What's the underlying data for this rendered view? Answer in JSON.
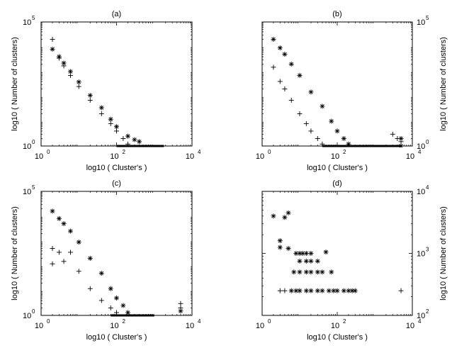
{
  "chart_data": [
    {
      "type": "scatter",
      "title": "(a)",
      "xlabel": "log10 ( Cluster's )",
      "ylabel": "log10 ( Number of clusters)",
      "xscale": "log",
      "yscale": "log",
      "xlim": [
        1,
        10000
      ],
      "ylim": [
        1,
        100000
      ],
      "xticks": [
        {
          "value": 1,
          "label": "10",
          "exp": "0"
        },
        {
          "value": 100,
          "label": "10",
          "exp": "2"
        },
        {
          "value": 10000,
          "label": "10",
          "exp": "4"
        }
      ],
      "yticks": [
        {
          "value": 1,
          "label": "10",
          "exp": "0"
        },
        {
          "value": 100000,
          "label": "10",
          "exp": "5"
        }
      ],
      "y_axis_side": "left",
      "series": [
        {
          "marker": "plus",
          "points": [
            [
              2,
              20000
            ],
            [
              3,
              3500
            ],
            [
              4,
              1700
            ],
            [
              6,
              700
            ],
            [
              10,
              250
            ],
            [
              20,
              70
            ],
            [
              40,
              20
            ],
            [
              70,
              8
            ],
            [
              100,
              4
            ],
            [
              150,
              2
            ],
            [
              200,
              1.2
            ]
          ]
        },
        {
          "marker": "star",
          "points": [
            [
              2,
              8000
            ],
            [
              3,
              4000
            ],
            [
              4,
              2200
            ],
            [
              6,
              1000
            ],
            [
              10,
              380
            ],
            [
              20,
              110
            ],
            [
              40,
              35
            ],
            [
              70,
              12
            ],
            [
              100,
              6
            ],
            [
              200,
              2.5
            ],
            [
              300,
              1.8
            ],
            [
              400,
              1.5
            ]
          ]
        }
      ],
      "baseline": {
        "y": 1,
        "x_from": 100,
        "x_to": 1800
      }
    },
    {
      "type": "scatter",
      "title": "(b)",
      "xlabel": "log10 ( Cluster's )",
      "ylabel": "log10 ( Number of clusters)",
      "xscale": "log",
      "yscale": "log",
      "xlim": [
        1,
        10000
      ],
      "ylim": [
        1,
        100000
      ],
      "xticks": [
        {
          "value": 1,
          "label": "10",
          "exp": "0"
        },
        {
          "value": 100,
          "label": "10",
          "exp": "2"
        },
        {
          "value": 10000,
          "label": "10",
          "exp": "4"
        }
      ],
      "yticks": [
        {
          "value": 1,
          "label": "10",
          "exp": "0"
        },
        {
          "value": 100000,
          "label": "10",
          "exp": "5"
        }
      ],
      "y_axis_side": "right",
      "series": [
        {
          "marker": "plus",
          "points": [
            [
              2,
              1500
            ],
            [
              3,
              400
            ],
            [
              4,
              200
            ],
            [
              6,
              70
            ],
            [
              10,
              20
            ],
            [
              15,
              8
            ],
            [
              20,
              4
            ],
            [
              30,
              2
            ],
            [
              40,
              1.2
            ],
            [
              3000,
              3
            ],
            [
              4000,
              2
            ],
            [
              5000,
              1.5
            ]
          ]
        },
        {
          "marker": "star",
          "points": [
            [
              2,
              20000
            ],
            [
              3,
              9000
            ],
            [
              4,
              5000
            ],
            [
              6,
              2000
            ],
            [
              10,
              700
            ],
            [
              20,
              150
            ],
            [
              40,
              40
            ],
            [
              70,
              10
            ],
            [
              100,
              4
            ],
            [
              150,
              2
            ],
            [
              200,
              1.2
            ],
            [
              5000,
              2
            ],
            [
              5000,
              1
            ]
          ]
        }
      ],
      "baseline": {
        "y": 1,
        "x_from": 40,
        "x_to": 5000
      }
    },
    {
      "type": "scatter",
      "title": "(c)",
      "xlabel": "log10 ( Cluster's )",
      "ylabel": "log10 ( Number of clusters)",
      "xscale": "log",
      "yscale": "log",
      "xlim": [
        1,
        10000
      ],
      "ylim": [
        1,
        100000
      ],
      "xticks": [
        {
          "value": 1,
          "label": "10",
          "exp": "0"
        },
        {
          "value": 100,
          "label": "10",
          "exp": "2"
        },
        {
          "value": 10000,
          "label": "10",
          "exp": "4"
        }
      ],
      "yticks": [
        {
          "value": 1,
          "label": "10",
          "exp": "0"
        },
        {
          "value": 100000,
          "label": "10",
          "exp": "5"
        }
      ],
      "y_axis_side": "left",
      "series": [
        {
          "marker": "plus",
          "points": [
            [
              2,
              500
            ],
            [
              2,
              120
            ],
            [
              3,
              350
            ],
            [
              4,
              150
            ],
            [
              6,
              350
            ],
            [
              10,
              60
            ],
            [
              20,
              12
            ],
            [
              40,
              4
            ],
            [
              70,
              2
            ],
            [
              100,
              1.3
            ],
            [
              5000,
              3
            ],
            [
              5000,
              2
            ]
          ]
        },
        {
          "marker": "star",
          "points": [
            [
              2,
              16000
            ],
            [
              3,
              8000
            ],
            [
              4,
              5000
            ],
            [
              6,
              2500
            ],
            [
              10,
              900
            ],
            [
              20,
              200
            ],
            [
              40,
              50
            ],
            [
              70,
              12
            ],
            [
              100,
              5
            ],
            [
              150,
              2.5
            ],
            [
              200,
              1.3
            ],
            [
              5000,
              1.5
            ]
          ]
        }
      ],
      "baseline": {
        "y": 1,
        "x_from": 70,
        "x_to": 1000
      }
    },
    {
      "type": "scatter",
      "title": "(d)",
      "xlabel": "log10 ( Cluster's )",
      "ylabel": "log10 ( Number of clusters)",
      "xscale": "log",
      "yscale": "log",
      "xlim": [
        1,
        10000
      ],
      "ylim": [
        100,
        10000
      ],
      "xticks": [
        {
          "value": 1,
          "label": "10",
          "exp": "0"
        },
        {
          "value": 100,
          "label": "10",
          "exp": "2"
        },
        {
          "value": 10000,
          "label": "10",
          "exp": "4"
        }
      ],
      "yticks": [
        {
          "value": 100,
          "label": "10",
          "exp": "2"
        },
        {
          "value": 1000,
          "label": "10",
          "exp": "3"
        },
        {
          "value": 10000,
          "label": "10",
          "exp": "4"
        }
      ],
      "y_axis_side": "right",
      "series": [
        {
          "marker": "plus",
          "points": [
            [
              3,
              250
            ],
            [
              4,
              250
            ],
            [
              5000,
              250
            ]
          ]
        },
        {
          "marker": "star",
          "points": [
            [
              2,
              4000
            ],
            [
              3,
              1600
            ],
            [
              4,
              3800
            ],
            [
              5,
              4500
            ],
            [
              3,
              1250
            ],
            [
              5,
              1200
            ],
            [
              8,
              1000
            ],
            [
              10,
              1000
            ],
            [
              12,
              1000
            ],
            [
              15,
              1000
            ],
            [
              20,
              1000
            ],
            [
              10,
              750
            ],
            [
              15,
              750
            ],
            [
              20,
              750
            ],
            [
              30,
              750
            ],
            [
              50,
              1050
            ],
            [
              7,
              500
            ],
            [
              10,
              500
            ],
            [
              15,
              500
            ],
            [
              20,
              500
            ],
            [
              30,
              500
            ],
            [
              40,
              500
            ],
            [
              70,
              500
            ],
            [
              6,
              250
            ],
            [
              8,
              250
            ],
            [
              10,
              250
            ],
            [
              15,
              250
            ],
            [
              20,
              250
            ],
            [
              30,
              250
            ],
            [
              40,
              250
            ],
            [
              60,
              250
            ],
            [
              80,
              250
            ],
            [
              100,
              250
            ],
            [
              150,
              250
            ],
            [
              200,
              250
            ],
            [
              250,
              250
            ],
            [
              300,
              250
            ]
          ]
        }
      ]
    }
  ]
}
